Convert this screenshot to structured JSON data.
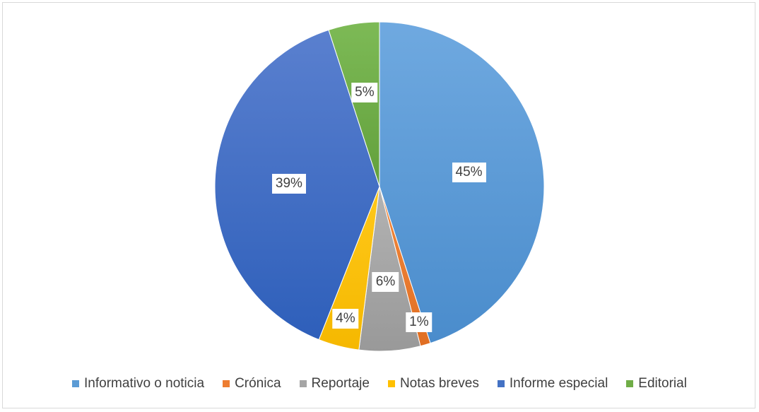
{
  "chart_data": {
    "type": "pie",
    "title": "",
    "categories": [
      "Informativo o noticia",
      "Crónica",
      "Reportaje",
      "Notas breves",
      "Informe especial",
      "Editorial"
    ],
    "values": [
      45,
      1,
      6,
      4,
      39,
      5
    ],
    "labels": [
      "45%",
      "1%",
      "6%",
      "4%",
      "39%",
      "5%"
    ],
    "colors": [
      "#5b9bd5",
      "#ed7d31",
      "#a5a5a5",
      "#ffc000",
      "#4472c4",
      "#70ad47"
    ],
    "start_angle_deg": 0,
    "direction": "clockwise",
    "legend_position": "bottom"
  }
}
